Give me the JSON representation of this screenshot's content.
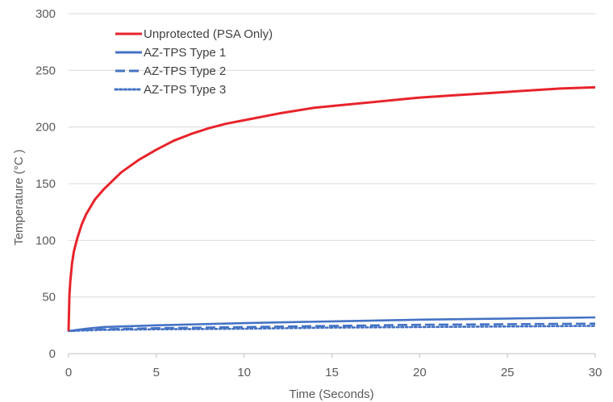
{
  "chart_data": {
    "type": "line",
    "title": "",
    "xlabel": "Time (Seconds)",
    "ylabel": "Temperature (°C )",
    "xlim": [
      0,
      30
    ],
    "ylim": [
      0,
      300
    ],
    "xticks": [
      0,
      5,
      10,
      15,
      20,
      25,
      30
    ],
    "yticks": [
      0,
      50,
      100,
      150,
      200,
      250,
      300
    ],
    "grid": "horizontal",
    "legend_position": "top-left",
    "series": [
      {
        "name": "Unprotected (PSA Only)",
        "color": "#e8232a",
        "dash": "solid",
        "x": [
          0,
          0.05,
          0.1,
          0.2,
          0.3,
          0.5,
          0.75,
          1,
          1.5,
          2,
          3,
          4,
          5,
          6,
          7,
          8,
          9,
          10,
          12,
          14,
          16,
          18,
          20,
          22,
          24,
          26,
          28,
          30
        ],
        "y": [
          20,
          52,
          64,
          80,
          90,
          102,
          114,
          123,
          136,
          145,
          160,
          171,
          180,
          188,
          194,
          199,
          203,
          206,
          212,
          217,
          220,
          223,
          226,
          228,
          230,
          232,
          234,
          235
        ]
      },
      {
        "name": "AZ-TPS Type 1",
        "color": "#4472c4",
        "dash": "solid",
        "x": [
          0,
          1,
          2,
          5,
          10,
          15,
          20,
          25,
          30
        ],
        "y": [
          20,
          22,
          23.5,
          25,
          27,
          28.5,
          30,
          31,
          32
        ]
      },
      {
        "name": "AZ-TPS Type 2",
        "color": "#4472c4",
        "dash": "dashed",
        "x": [
          0,
          1,
          2,
          5,
          10,
          15,
          20,
          25,
          30
        ],
        "y": [
          20,
          21,
          21.5,
          22.5,
          23.5,
          24.5,
          25.5,
          26,
          26.5
        ]
      },
      {
        "name": "AZ-TPS Type 3",
        "color": "#4472c4",
        "dash": "dotted",
        "x": [
          0,
          1,
          2,
          5,
          10,
          15,
          20,
          25,
          30
        ],
        "y": [
          20,
          20.5,
          21,
          21.5,
          22,
          23,
          23.5,
          24,
          24.5
        ]
      }
    ]
  }
}
